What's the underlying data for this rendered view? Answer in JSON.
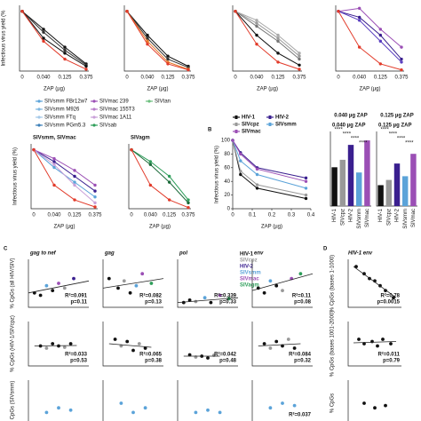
{
  "legend": {
    "entries": [
      {
        "name": "SIVsmm FBr12w7",
        "color": "#5ba3d9"
      },
      {
        "name": "SIVsmm M926",
        "color": "#7fb7e0"
      },
      {
        "name": "SIVsmm FTq",
        "color": "#a4c8e8"
      },
      {
        "name": "SIVsmm PGm5.3",
        "color": "#3c7fb8"
      },
      {
        "name": "SIVmac 239",
        "color": "#9b4fb5"
      },
      {
        "name": "SIVmac 155T3",
        "color": "#b77cc9"
      },
      {
        "name": "SIVmac 1A11",
        "color": "#c9a0d8"
      },
      {
        "name": "SIVsab",
        "color": "#2e9e5a"
      },
      {
        "name": "SIVtan",
        "color": "#6cbf7e"
      }
    ]
  },
  "chart_data": [
    {
      "type": "line",
      "ylabel": "Infectious virus yield (%",
      "xlabel": "ZAP (µg)",
      "categories": [
        "0",
        "0.040",
        "0.125",
        "0.375"
      ],
      "ylim": [
        0,
        110
      ],
      "series": [
        {
          "color": "#111",
          "values": [
            100,
            70,
            40,
            12
          ]
        },
        {
          "color": "#333",
          "values": [
            100,
            65,
            35,
            10
          ]
        },
        {
          "color": "#111",
          "values": [
            100,
            55,
            30,
            8
          ]
        },
        {
          "color": "#e23b2a",
          "values": [
            100,
            50,
            20,
            3
          ]
        }
      ]
    },
    {
      "type": "line",
      "xlabel": "ZAP (µg)",
      "categories": [
        "0",
        "0.040",
        "0.125",
        "0.375"
      ],
      "ylim": [
        0,
        110
      ],
      "series": [
        {
          "color": "#111",
          "values": [
            100,
            60,
            25,
            8
          ]
        },
        {
          "color": "#333",
          "values": [
            100,
            55,
            20,
            6
          ]
        },
        {
          "color": "#e8792a",
          "values": [
            100,
            50,
            15,
            3
          ]
        },
        {
          "color": "#e23b2a",
          "values": [
            100,
            45,
            12,
            2
          ]
        }
      ]
    },
    {
      "type": "line",
      "xlabel": "ZAP (µg)",
      "categories": [
        "0",
        "0.040",
        "0.125",
        "0.375"
      ],
      "ylim": [
        0,
        110
      ],
      "series": [
        {
          "color": "#999",
          "values": [
            100,
            80,
            55,
            25
          ]
        },
        {
          "color": "#777",
          "values": [
            100,
            75,
            50,
            20
          ]
        },
        {
          "color": "#aaa",
          "values": [
            100,
            85,
            60,
            30
          ]
        },
        {
          "color": "#111",
          "values": [
            100,
            60,
            30,
            10
          ]
        },
        {
          "color": "#e23b2a",
          "values": [
            100,
            45,
            15,
            3
          ]
        }
      ]
    },
    {
      "type": "line",
      "xlabel": "ZAP (µg)",
      "categories": [
        "0",
        "0.040",
        "0.125",
        "0.375"
      ],
      "ylim": [
        0,
        110
      ],
      "series": [
        {
          "color": "#9b4fb5",
          "values": [
            100,
            105,
            70,
            40
          ]
        },
        {
          "color": "#3a1f8f",
          "values": [
            100,
            90,
            60,
            20
          ]
        },
        {
          "color": "#5a3fc0",
          "values": [
            100,
            85,
            50,
            15
          ]
        },
        {
          "color": "#e23b2a",
          "values": [
            100,
            40,
            12,
            2
          ]
        }
      ]
    },
    {
      "type": "line",
      "title": "SIVsmm, SIVmac",
      "ylabel": "Infectious virus yield (%)",
      "xlabel": "ZAP (µg)",
      "categories": [
        "0",
        "0.040",
        "0.125",
        "0.375"
      ],
      "ylim": [
        0,
        110
      ],
      "series": [
        {
          "color": "#5ba3d9",
          "values": [
            100,
            70,
            45,
            20
          ]
        },
        {
          "color": "#3a1f8f",
          "values": [
            100,
            80,
            55,
            30
          ]
        },
        {
          "color": "#9b4fb5",
          "values": [
            100,
            85,
            65,
            40
          ]
        },
        {
          "color": "#c9a0d8",
          "values": [
            100,
            75,
            40,
            10
          ]
        },
        {
          "color": "#e23b2a",
          "values": [
            100,
            40,
            15,
            3
          ]
        }
      ]
    },
    {
      "type": "line",
      "title": "SIVagm",
      "xlabel": "ZAP (µg)",
      "categories": [
        "0",
        "0.040",
        "0.125",
        "0.375"
      ],
      "ylim": [
        0,
        110
      ],
      "series": [
        {
          "color": "#2e9e5a",
          "values": [
            100,
            80,
            55,
            15
          ]
        },
        {
          "color": "#1c6b3a",
          "values": [
            100,
            75,
            45,
            10
          ]
        },
        {
          "color": "#e23b2a",
          "values": [
            100,
            40,
            15,
            2
          ]
        }
      ]
    },
    {
      "type": "line",
      "letter": "B",
      "ylabel": "Infectious virus yield (%)",
      "xlabel": "ZAP (µg)",
      "x": [
        0,
        0.04,
        0.125,
        0.375
      ],
      "xlim": [
        0,
        0.4
      ],
      "xticks": [
        0,
        0.1,
        0.2,
        0.3,
        0.4
      ],
      "ylim": [
        0,
        100
      ],
      "yticks": [
        0,
        20,
        40,
        60,
        80,
        100
      ],
      "series": [
        {
          "name": "HIV-1",
          "color": "#111",
          "values": [
            100,
            50,
            30,
            15
          ]
        },
        {
          "name": "HIV-2",
          "color": "#3a1f8f",
          "values": [
            100,
            82,
            60,
            45
          ]
        },
        {
          "name": "SIVcpz",
          "color": "#999",
          "values": [
            100,
            55,
            35,
            20
          ]
        },
        {
          "name": "SIVsmm",
          "color": "#5ba3d9",
          "values": [
            100,
            70,
            50,
            30
          ]
        },
        {
          "name": "SIVmac",
          "color": "#9b4fb5",
          "values": [
            100,
            80,
            58,
            40
          ]
        }
      ]
    },
    {
      "type": "bar",
      "title": "0.040 µg ZAP",
      "categories": [
        "HIV-1",
        "SIVcpz",
        "HIV-2",
        "SIVsmm",
        "SIVmac"
      ],
      "colors": [
        "#111",
        "#999",
        "#3a1f8f",
        "#5ba3d9",
        "#9b4fb5"
      ],
      "values": [
        52,
        62,
        82,
        45,
        88
      ],
      "ylim": [
        0,
        100
      ],
      "annotations": [
        "****",
        "****",
        "****",
        "****"
      ]
    },
    {
      "type": "bar",
      "title": "0.125 µg ZAP",
      "categories": [
        "HIV-1",
        "SIVcpz",
        "HIV-2",
        "SIVsmm",
        "SIVmac"
      ],
      "colors": [
        "#111",
        "#999",
        "#3a1f8f",
        "#5ba3d9",
        "#9b4fb5"
      ],
      "values": [
        28,
        35,
        57,
        40,
        70
      ],
      "ylim": [
        0,
        100
      ],
      "annotations": [
        "****",
        "****",
        "****",
        "****"
      ]
    },
    {
      "type": "scatter",
      "letter": "C",
      "title": "gag to nef",
      "ylabel": "% CpGs (all HIV/SIV)",
      "xlim": [
        0,
        1
      ],
      "ylim": [
        0,
        1
      ],
      "x": [
        0.1,
        0.2,
        0.3,
        0.4,
        0.5,
        0.6,
        0.75
      ],
      "y": [
        0.3,
        0.25,
        0.45,
        0.35,
        0.5,
        0.4,
        0.6
      ],
      "point_colors": [
        "#111",
        "#111",
        "#5ba3d9",
        "#111",
        "#9b4fb5",
        "#999",
        "#3a1f8f"
      ],
      "trend": {
        "x": [
          0,
          1
        ],
        "y": [
          0.3,
          0.55
        ]
      },
      "annotation": [
        "R²=0.091",
        "p=0.11"
      ]
    },
    {
      "type": "scatter",
      "title": "gag",
      "xlim": [
        0,
        1
      ],
      "ylim": [
        0,
        1
      ],
      "x": [
        0.1,
        0.25,
        0.35,
        0.45,
        0.55,
        0.65,
        0.8
      ],
      "y": [
        0.6,
        0.4,
        0.55,
        0.3,
        0.45,
        0.7,
        0.5
      ],
      "point_colors": [
        "#111",
        "#111",
        "#999",
        "#111",
        "#5ba3d9",
        "#9b4fb5",
        "#2e9e5a"
      ],
      "trend": {
        "x": [
          0,
          1
        ],
        "y": [
          0.4,
          0.6
        ]
      },
      "annotation": [
        "R²=0.082",
        "p=0.13"
      ]
    },
    {
      "type": "scatter",
      "title": "pol",
      "xlim": [
        0,
        1
      ],
      "ylim": [
        0,
        1
      ],
      "x": [
        0.1,
        0.2,
        0.3,
        0.45,
        0.55,
        0.7,
        0.85
      ],
      "y": [
        0.1,
        0.15,
        0.12,
        0.2,
        0.1,
        0.25,
        0.18
      ],
      "point_colors": [
        "#111",
        "#111",
        "#999",
        "#5ba3d9",
        "#111",
        "#9b4fb5",
        "#2e9e5a"
      ],
      "trend": {
        "x": [
          0,
          1
        ],
        "y": [
          0.1,
          0.2
        ]
      },
      "annotation": [
        "R²=0.339",
        "p=0.33"
      ],
      "legend": [
        {
          "name": "HIV-1",
          "color": "#111"
        },
        {
          "name": "SIVcpz",
          "color": "#999"
        },
        {
          "name": "HIV-2",
          "color": "#3a1f8f"
        },
        {
          "name": "SIVsmm",
          "color": "#5ba3d9"
        },
        {
          "name": "SIVmac",
          "color": "#9b4fb5"
        },
        {
          "name": "SIVagm",
          "color": "#2e9e5a"
        }
      ]
    },
    {
      "type": "scatter",
      "title": "env",
      "xlim": [
        0,
        1
      ],
      "ylim": [
        0,
        1
      ],
      "x": [
        0.1,
        0.2,
        0.3,
        0.4,
        0.5,
        0.65,
        0.8
      ],
      "y": [
        0.4,
        0.3,
        0.55,
        0.45,
        0.35,
        0.6,
        0.7
      ],
      "point_colors": [
        "#111",
        "#111",
        "#5ba3d9",
        "#111",
        "#999",
        "#9b4fb5",
        "#2e9e5a"
      ],
      "trend": {
        "x": [
          0,
          1
        ],
        "y": [
          0.35,
          0.7
        ]
      },
      "annotation": [
        "R²=0.11",
        "p=0.08"
      ]
    },
    {
      "type": "scatter",
      "ylabel": "% CpGs (HIV-1/SIVcpz)",
      "xlim": [
        0,
        1
      ],
      "ylim": [
        0,
        1
      ],
      "x": [
        0.2,
        0.3,
        0.4,
        0.5,
        0.6,
        0.7
      ],
      "y": [
        0.45,
        0.4,
        0.5,
        0.45,
        0.42,
        0.5
      ],
      "point_colors": [
        "#111",
        "#999",
        "#111",
        "#111",
        "#999",
        "#111"
      ],
      "trend": {
        "x": [
          0.1,
          0.8
        ],
        "y": [
          0.45,
          0.46
        ]
      },
      "annotation": [
        "R²=0.033",
        "p=0.53"
      ]
    },
    {
      "type": "scatter",
      "xlim": [
        0,
        1
      ],
      "ylim": [
        0,
        1
      ],
      "x": [
        0.2,
        0.3,
        0.4,
        0.5,
        0.6,
        0.7
      ],
      "y": [
        0.6,
        0.45,
        0.55,
        0.35,
        0.5,
        0.4
      ],
      "point_colors": [
        "#111",
        "#999",
        "#111",
        "#111",
        "#999",
        "#111"
      ],
      "trend": {
        "x": [
          0.1,
          0.8
        ],
        "y": [
          0.5,
          0.42
        ]
      },
      "annotation": [
        "R²=0.065",
        "p=0.38"
      ]
    },
    {
      "type": "scatter",
      "xlim": [
        0,
        1
      ],
      "ylim": [
        0,
        1
      ],
      "x": [
        0.2,
        0.3,
        0.4,
        0.5,
        0.6
      ],
      "y": [
        0.25,
        0.2,
        0.22,
        0.18,
        0.24
      ],
      "point_colors": [
        "#111",
        "#999",
        "#111",
        "#111",
        "#999"
      ],
      "trend": {
        "x": [
          0.1,
          0.7
        ],
        "y": [
          0.22,
          0.22
        ]
      },
      "annotation": [
        "R²=0.042",
        "p=0.48"
      ]
    },
    {
      "type": "scatter",
      "xlim": [
        0,
        1
      ],
      "ylim": [
        0,
        1
      ],
      "x": [
        0.2,
        0.3,
        0.4,
        0.5,
        0.6,
        0.7
      ],
      "y": [
        0.5,
        0.4,
        0.55,
        0.45,
        0.6,
        0.4
      ],
      "point_colors": [
        "#111",
        "#999",
        "#111",
        "#111",
        "#999",
        "#111"
      ],
      "trend": {
        "x": [
          0.1,
          0.8
        ],
        "y": [
          0.45,
          0.5
        ]
      },
      "annotation": [
        "R²=0.084",
        "p=0.32"
      ]
    },
    {
      "type": "scatter",
      "ylabel": "% CpGs (SIVsmm)",
      "xlim": [
        0,
        1
      ],
      "ylim": [
        0,
        1
      ],
      "x": [
        0.3,
        0.5,
        0.7
      ],
      "y": [
        0.3,
        0.4,
        0.35
      ],
      "point_colors": [
        "#5ba3d9",
        "#5ba3d9",
        "#5ba3d9"
      ]
    },
    {
      "type": "scatter",
      "xlim": [
        0,
        1
      ],
      "ylim": [
        0,
        1
      ],
      "x": [
        0.3,
        0.5,
        0.7
      ],
      "y": [
        0.5,
        0.3,
        0.4
      ],
      "point_colors": [
        "#5ba3d9",
        "#5ba3d9",
        "#5ba3d9"
      ]
    },
    {
      "type": "scatter",
      "xlim": [
        0,
        1
      ],
      "ylim": [
        0,
        1
      ],
      "x": [
        0.3,
        0.5,
        0.7
      ],
      "y": [
        0.3,
        0.35,
        0.3
      ],
      "point_colors": [
        "#5ba3d9",
        "#5ba3d9",
        "#5ba3d9"
      ]
    },
    {
      "type": "scatter",
      "xlim": [
        0,
        1
      ],
      "ylim": [
        0,
        1
      ],
      "x": [
        0.3,
        0.5,
        0.7
      ],
      "y": [
        0.4,
        0.5,
        0.45
      ],
      "point_colors": [
        "#5ba3d9",
        "#5ba3d9",
        "#5ba3d9"
      ],
      "annotation": [
        "R²=0.037"
      ]
    },
    {
      "type": "scatter",
      "letter": "D",
      "title": "HIV-1 env",
      "ylabel": "% CpGs (bases 1-1000)",
      "xlim": [
        0,
        1
      ],
      "ylim": [
        0,
        1
      ],
      "x": [
        0.15,
        0.3,
        0.4,
        0.5,
        0.6,
        0.7,
        0.85
      ],
      "y": [
        0.85,
        0.7,
        0.6,
        0.55,
        0.45,
        0.35,
        0.2
      ],
      "point_colors": [
        "#111",
        "#111",
        "#111",
        "#111",
        "#111",
        "#111",
        "#111"
      ],
      "trend": {
        "x": [
          0.1,
          0.9
        ],
        "y": [
          0.85,
          0.2
        ]
      },
      "annotation": [
        "R²=0.78",
        "p=0.0015"
      ]
    },
    {
      "type": "scatter",
      "ylabel": "% CpGs (bases 1001-2000)",
      "xlim": [
        0,
        1
      ],
      "ylim": [
        0,
        1
      ],
      "x": [
        0.2,
        0.3,
        0.45,
        0.55,
        0.65,
        0.8
      ],
      "y": [
        0.6,
        0.5,
        0.55,
        0.45,
        0.6,
        0.5
      ],
      "point_colors": [
        "#111",
        "#111",
        "#111",
        "#111",
        "#111",
        "#111"
      ],
      "trend": {
        "x": [
          0.1,
          0.9
        ],
        "y": [
          0.52,
          0.55
        ]
      },
      "annotation": [
        "R²=0.011",
        "p=0.79"
      ]
    },
    {
      "type": "scatter",
      "ylabel": "% CpGs",
      "xlim": [
        0,
        1
      ],
      "ylim": [
        0,
        1
      ],
      "x": [
        0.3,
        0.5,
        0.7
      ],
      "y": [
        0.5,
        0.4,
        0.45
      ],
      "point_colors": [
        "#111",
        "#111",
        "#111"
      ]
    }
  ]
}
